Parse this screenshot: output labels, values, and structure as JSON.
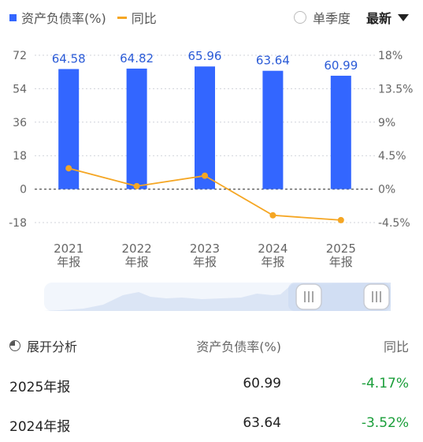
{
  "legend": {
    "series1": "资产负债率(%)",
    "series2": "同比"
  },
  "controls": {
    "single_quarter": "单季度",
    "latest": "最新"
  },
  "chart_data": {
    "type": "bar",
    "categories": [
      "2021年报",
      "2022年报",
      "2023年报",
      "2024年报",
      "2025年报"
    ],
    "x_tick_lines": [
      [
        "2021",
        "年报"
      ],
      [
        "2022",
        "年报"
      ],
      [
        "2023",
        "年报"
      ],
      [
        "2024",
        "年报"
      ],
      [
        "2025",
        "年报"
      ]
    ],
    "series": [
      {
        "values": [
          64.58,
          64.82,
          65.96,
          63.64,
          60.99
        ],
        "color": "#3366ff",
        "axis": "left",
        "kind": "bar"
      },
      {
        "values": [
          2.8,
          0.4,
          1.8,
          -3.52,
          -4.17
        ],
        "color": "#f5a623",
        "axis": "right",
        "kind": "line"
      }
    ],
    "data_labels": [
      "64.58",
      "64.82",
      "65.96",
      "63.64",
      "60.99"
    ],
    "left_ticks": [
      "72",
      "54",
      "36",
      "18",
      "0",
      "-18"
    ],
    "left_ylim": [
      -18,
      72
    ],
    "right_ticks": [
      "18%",
      "13.5%",
      "9%",
      "4.5%",
      "0%",
      "-4.5%"
    ],
    "right_ylim": [
      -4.5,
      18
    ],
    "zero_line": "dashed"
  },
  "table": {
    "header": {
      "analysis": "展开分析",
      "value": "资产负债率(%)",
      "change": "同比"
    },
    "rows": [
      {
        "period": "2025年报",
        "value": "60.99",
        "change": "-4.17%"
      },
      {
        "period": "2024年报",
        "value": "63.64",
        "change": "-3.52%"
      }
    ]
  },
  "colors": {
    "bar": "#3366ff",
    "line": "#f5a623",
    "positive_change": "#1a9e3a"
  }
}
